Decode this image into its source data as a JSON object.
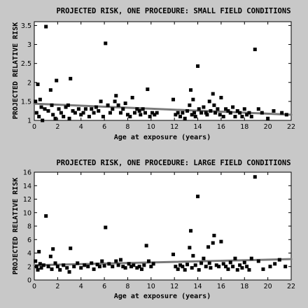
{
  "chart_data": [
    {
      "type": "scatter",
      "title": "PROJECTED RISK, ONE PROCEDURE: SMALL FIELD CONDITIONS",
      "xlabel": "Age at exposure (years)",
      "ylabel": "PROJECTED RELATIVE RISK",
      "xlim": [
        0,
        22
      ],
      "ylim": [
        1,
        3.6
      ],
      "xticks": [
        0,
        2,
        4,
        6,
        8,
        10,
        12,
        14,
        16,
        18,
        20,
        22
      ],
      "yticks": [
        1,
        1.5,
        2,
        2.5,
        3,
        3.5
      ],
      "ytick_labels": [
        "1",
        "1.5",
        "2",
        "2.5",
        "3",
        "3.5"
      ],
      "grid": false,
      "colors": {
        "marker": "#000000",
        "trend": "#7a7a7a"
      },
      "trend": {
        "x": [
          0,
          22
        ],
        "y": [
          1.44,
          1.15
        ]
      },
      "points": [
        [
          0.1,
          1.5
        ],
        [
          0.2,
          1.2
        ],
        [
          0.3,
          1.95
        ],
        [
          0.4,
          1.1
        ],
        [
          0.5,
          1.55
        ],
        [
          0.6,
          1.35
        ],
        [
          0.7,
          1.0
        ],
        [
          0.9,
          1.3
        ],
        [
          1.0,
          3.47
        ],
        [
          1.2,
          1.25
        ],
        [
          1.4,
          1.8
        ],
        [
          1.5,
          1.4
        ],
        [
          1.6,
          1.15
        ],
        [
          1.8,
          1.05
        ],
        [
          1.9,
          2.05
        ],
        [
          2.1,
          1.3
        ],
        [
          2.3,
          1.2
        ],
        [
          2.5,
          1.1
        ],
        [
          2.7,
          1.35
        ],
        [
          2.9,
          1.4
        ],
        [
          3.0,
          1.05
        ],
        [
          3.1,
          2.1
        ],
        [
          3.3,
          1.25
        ],
        [
          3.5,
          1.2
        ],
        [
          3.8,
          1.3
        ],
        [
          4.0,
          1.15
        ],
        [
          4.2,
          1.2
        ],
        [
          4.4,
          1.3
        ],
        [
          4.7,
          1.1
        ],
        [
          4.9,
          1.3
        ],
        [
          5.1,
          1.2
        ],
        [
          5.3,
          1.35
        ],
        [
          5.5,
          1.25
        ],
        [
          5.7,
          1.5
        ],
        [
          5.9,
          1.1
        ],
        [
          6.1,
          3.03
        ],
        [
          6.3,
          1.4
        ],
        [
          6.5,
          1.2
        ],
        [
          6.7,
          1.3
        ],
        [
          6.9,
          1.5
        ],
        [
          7.0,
          1.65
        ],
        [
          7.2,
          1.4
        ],
        [
          7.4,
          1.2
        ],
        [
          7.6,
          1.3
        ],
        [
          7.8,
          1.45
        ],
        [
          8.0,
          1.15
        ],
        [
          8.2,
          1.1
        ],
        [
          8.4,
          1.6
        ],
        [
          8.6,
          1.2
        ],
        [
          8.8,
          1.3
        ],
        [
          9.0,
          1.25
        ],
        [
          9.1,
          1.15
        ],
        [
          9.3,
          1.3
        ],
        [
          9.5,
          1.2
        ],
        [
          9.7,
          1.82
        ],
        [
          9.9,
          1.1
        ],
        [
          10.1,
          1.2
        ],
        [
          10.3,
          1.15
        ],
        [
          10.5,
          1.2
        ],
        [
          11.9,
          1.55
        ],
        [
          12.1,
          1.15
        ],
        [
          12.3,
          1.2
        ],
        [
          12.5,
          1.1
        ],
        [
          12.7,
          1.2
        ],
        [
          12.9,
          1.05
        ],
        [
          13.1,
          1.25
        ],
        [
          13.3,
          1.4
        ],
        [
          13.4,
          1.8
        ],
        [
          13.5,
          1.15
        ],
        [
          13.6,
          1.55
        ],
        [
          13.7,
          1.2
        ],
        [
          13.8,
          1.1
        ],
        [
          14.0,
          2.43
        ],
        [
          14.1,
          1.3
        ],
        [
          14.3,
          1.2
        ],
        [
          14.5,
          1.35
        ],
        [
          14.7,
          1.2
        ],
        [
          14.8,
          1.15
        ],
        [
          15.0,
          1.5
        ],
        [
          15.1,
          1.25
        ],
        [
          15.3,
          1.7
        ],
        [
          15.4,
          1.4
        ],
        [
          15.5,
          1.2
        ],
        [
          15.7,
          1.3
        ],
        [
          15.9,
          1.15
        ],
        [
          16.0,
          1.6
        ],
        [
          16.2,
          1.1
        ],
        [
          16.4,
          1.3
        ],
        [
          16.6,
          1.25
        ],
        [
          16.8,
          1.2
        ],
        [
          17.0,
          1.35
        ],
        [
          17.2,
          1.1
        ],
        [
          17.4,
          1.25
        ],
        [
          17.6,
          1.2
        ],
        [
          17.8,
          1.1
        ],
        [
          18.0,
          1.3
        ],
        [
          18.2,
          1.15
        ],
        [
          18.4,
          1.2
        ],
        [
          18.6,
          1.1
        ],
        [
          18.9,
          2.87
        ],
        [
          19.2,
          1.3
        ],
        [
          19.5,
          1.2
        ],
        [
          20.0,
          1.05
        ],
        [
          20.5,
          1.25
        ],
        [
          21.2,
          1.2
        ],
        [
          21.6,
          1.15
        ]
      ]
    },
    {
      "type": "scatter",
      "title": "PROJECTED RISK, ONE PROCEDURE: LARGE FIELD CONDITIONS",
      "xlabel": "Age at exposure (years)",
      "ylabel": "PROJECTED RELATIVE RISK",
      "xlim": [
        0,
        22
      ],
      "ylim": [
        0,
        16
      ],
      "xticks": [
        0,
        2,
        4,
        6,
        8,
        10,
        12,
        14,
        16,
        18,
        20,
        22
      ],
      "yticks": [
        0,
        2,
        4,
        6,
        8,
        10,
        12,
        14,
        16
      ],
      "ytick_labels": [
        "0",
        "2",
        "4",
        "6",
        "8",
        "10",
        "12",
        "14",
        "16"
      ],
      "grid": false,
      "colors": {
        "marker": "#000000",
        "trend": "#7a7a7a"
      },
      "trend": {
        "x": [
          0,
          22
        ],
        "y": [
          2.2,
          3.1
        ]
      },
      "points": [
        [
          0.1,
          2.8
        ],
        [
          0.2,
          2.0
        ],
        [
          0.3,
          1.5
        ],
        [
          0.4,
          4.2
        ],
        [
          0.5,
          2.4
        ],
        [
          0.6,
          1.8
        ],
        [
          0.8,
          2.2
        ],
        [
          1.0,
          9.5
        ],
        [
          1.2,
          2.0
        ],
        [
          1.4,
          3.5
        ],
        [
          1.5,
          1.6
        ],
        [
          1.6,
          4.6
        ],
        [
          1.8,
          2.5
        ],
        [
          2.0,
          2.0
        ],
        [
          2.2,
          1.5
        ],
        [
          2.5,
          2.2
        ],
        [
          2.8,
          1.8
        ],
        [
          3.0,
          1.2
        ],
        [
          3.1,
          4.7
        ],
        [
          3.4,
          2.0
        ],
        [
          3.7,
          2.5
        ],
        [
          4.0,
          1.8
        ],
        [
          4.3,
          2.2
        ],
        [
          4.6,
          2.0
        ],
        [
          4.9,
          2.5
        ],
        [
          5.1,
          1.6
        ],
        [
          5.4,
          2.3
        ],
        [
          5.6,
          2.0
        ],
        [
          5.8,
          2.8
        ],
        [
          6.0,
          2.1
        ],
        [
          6.1,
          7.8
        ],
        [
          6.4,
          2.4
        ],
        [
          6.7,
          2.0
        ],
        [
          7.0,
          2.8
        ],
        [
          7.2,
          2.2
        ],
        [
          7.4,
          3.0
        ],
        [
          7.6,
          2.0
        ],
        [
          7.8,
          1.8
        ],
        [
          8.1,
          2.4
        ],
        [
          8.3,
          2.0
        ],
        [
          8.5,
          2.2
        ],
        [
          8.8,
          1.8
        ],
        [
          9.0,
          2.0
        ],
        [
          9.2,
          1.6
        ],
        [
          9.4,
          2.2
        ],
        [
          9.6,
          5.1
        ],
        [
          9.8,
          2.8
        ],
        [
          10.0,
          2.0
        ],
        [
          10.2,
          2.4
        ],
        [
          11.9,
          3.8
        ],
        [
          12.1,
          2.0
        ],
        [
          12.3,
          1.6
        ],
        [
          12.5,
          2.2
        ],
        [
          12.7,
          2.0
        ],
        [
          12.9,
          1.5
        ],
        [
          13.1,
          2.3
        ],
        [
          13.3,
          4.8
        ],
        [
          13.4,
          7.3
        ],
        [
          13.5,
          1.8
        ],
        [
          13.6,
          3.6
        ],
        [
          13.8,
          2.2
        ],
        [
          14.0,
          12.4
        ],
        [
          14.1,
          1.5
        ],
        [
          14.3,
          2.5
        ],
        [
          14.5,
          3.2
        ],
        [
          14.7,
          2.0
        ],
        [
          14.9,
          4.9
        ],
        [
          15.0,
          2.5
        ],
        [
          15.1,
          1.8
        ],
        [
          15.3,
          5.5
        ],
        [
          15.4,
          6.6
        ],
        [
          15.6,
          2.2
        ],
        [
          15.8,
          2.0
        ],
        [
          16.0,
          5.7
        ],
        [
          16.2,
          2.4
        ],
        [
          16.4,
          2.0
        ],
        [
          16.6,
          1.6
        ],
        [
          16.8,
          2.6
        ],
        [
          17.0,
          2.0
        ],
        [
          17.2,
          3.2
        ],
        [
          17.4,
          1.5
        ],
        [
          17.6,
          2.2
        ],
        [
          17.8,
          1.8
        ],
        [
          18.0,
          2.6
        ],
        [
          18.2,
          2.0
        ],
        [
          18.4,
          1.5
        ],
        [
          18.6,
          3.2
        ],
        [
          18.9,
          15.3
        ],
        [
          19.2,
          2.8
        ],
        [
          19.6,
          1.6
        ],
        [
          20.2,
          2.0
        ],
        [
          20.6,
          2.4
        ],
        [
          21.0,
          3.0
        ],
        [
          21.5,
          2.0
        ]
      ]
    }
  ]
}
